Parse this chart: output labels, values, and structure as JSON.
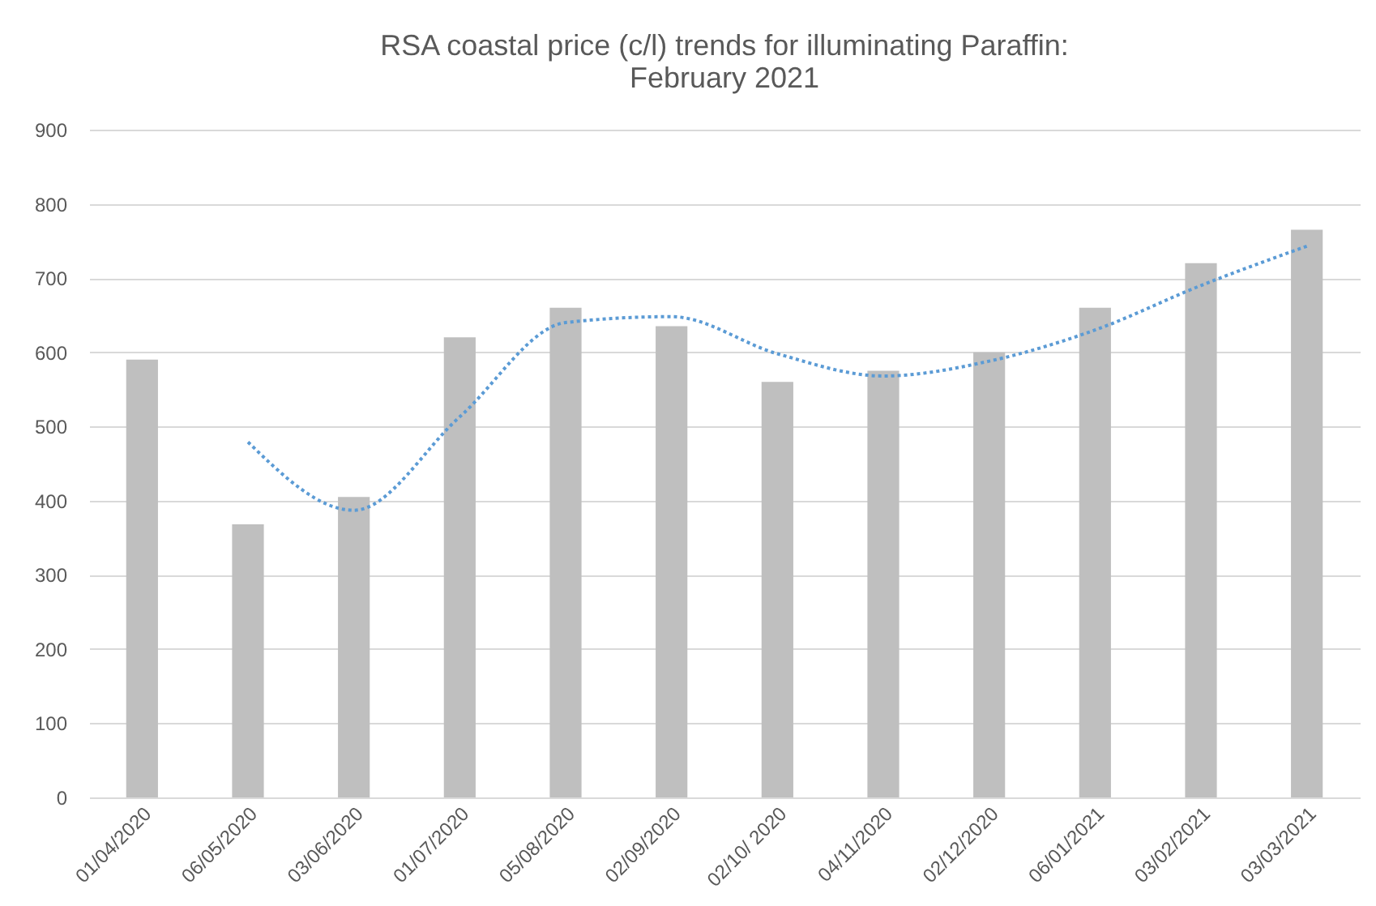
{
  "chart_data": {
    "type": "bar",
    "title": [
      "RSA coastal price (c/l) trends for illuminating Paraffin:",
      "February 2021"
    ],
    "categories": [
      "01/04/2020",
      "06/05/2020",
      "03/06/2020",
      "01/07/2020",
      "05/08/2020",
      "02/09/2020",
      "02/10/ 2020",
      "04/11/2020",
      "02/12/2020",
      "06/01/2021",
      "03/02/2021",
      "03/03/2021"
    ],
    "series": [
      {
        "color": "#bfbfbf",
        "values": [
          590,
          368,
          405,
          620,
          660,
          635,
          560,
          575,
          600,
          660,
          720,
          765
        ]
      },
      {
        "type": "line",
        "color": "#5b9bd5",
        "line_style": "dotted",
        "values": [
          null,
          479,
          387,
          513,
          640,
          648,
          598,
          568,
          588,
          630,
          690,
          743
        ]
      }
    ],
    "ylim": [
      0,
      900
    ],
    "yticks": [
      0,
      100,
      200,
      300,
      400,
      500,
      600,
      700,
      800,
      900
    ],
    "grid": "y"
  }
}
